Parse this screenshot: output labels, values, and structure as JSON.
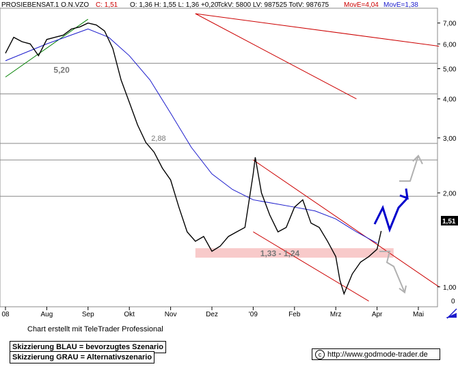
{
  "header": {
    "symbol": "PROSIEBENSAT.1 O.N.VZO",
    "close": "C: 1,51",
    "ohlc": "O: 1,36  H: 1,55  L: 1,36  +0,20",
    "volume": "TckV: 5800  LV: 987525  TotV: 987675",
    "move_e_red": "MovE=4,04",
    "move_e_blue": "MovE=1,38"
  },
  "colors": {
    "price": "#000000",
    "moving_average": "#1a1acc",
    "trend_channel": "#cc0000",
    "support_line": "#008000",
    "zone": "#f7c4c4",
    "preferred_scenario": "#0000cc",
    "alternative_scenario": "#a0a0a0"
  },
  "chart_data": {
    "type": "line",
    "y_axis_scale": "log",
    "ylim": [
      0.95,
      7.5
    ],
    "y_ticks": [
      1,
      2,
      3,
      4,
      5,
      6,
      7
    ],
    "y_tick_labels": [
      "1,00",
      "2,00",
      "3,00",
      "4,00",
      "5,00",
      "6,00",
      "7,00"
    ],
    "y_zero_label": "0",
    "x_tick_labels": [
      "08",
      "Aug",
      "Sep",
      "Okt",
      "Nov",
      "Dez",
      "'09",
      "Feb",
      "Mrz",
      "Apr",
      "Mai"
    ],
    "x_ticks_months": [
      0,
      1,
      2,
      3,
      4,
      5,
      6,
      7,
      8,
      9,
      10
    ],
    "xlim_months": [
      0,
      10.5
    ],
    "last_price_label": "1,51",
    "series": [
      {
        "role": "price",
        "x_months": [
          0,
          0.2,
          0.4,
          0.6,
          0.8,
          1.0,
          1.2,
          1.4,
          1.6,
          1.8,
          2.0,
          2.2,
          2.4,
          2.6,
          2.8,
          3.0,
          3.2,
          3.4,
          3.6,
          3.8,
          4.0,
          4.2,
          4.4,
          4.6,
          4.8,
          5.0,
          5.2,
          5.4,
          5.6,
          5.8,
          6.0,
          6.05,
          6.2,
          6.4,
          6.6,
          6.8,
          7.0,
          7.2,
          7.4,
          7.6,
          7.8,
          8.0,
          8.1,
          8.2,
          8.4,
          8.6,
          8.8,
          9.0,
          9.1
        ],
        "values": [
          5.6,
          6.3,
          6.1,
          6.0,
          5.5,
          6.2,
          6.3,
          6.4,
          6.7,
          6.8,
          7.0,
          6.9,
          6.6,
          5.8,
          4.6,
          3.9,
          3.3,
          2.9,
          2.7,
          2.4,
          2.2,
          1.8,
          1.5,
          1.4,
          1.45,
          1.3,
          1.35,
          1.45,
          1.5,
          1.55,
          2.3,
          2.6,
          2.0,
          1.7,
          1.5,
          1.55,
          1.8,
          1.9,
          1.6,
          1.55,
          1.4,
          1.25,
          1.05,
          0.95,
          1.1,
          1.2,
          1.25,
          1.32,
          1.51
        ]
      },
      {
        "role": "moving_average",
        "x_months": [
          0,
          1,
          2,
          2.5,
          3,
          3.5,
          4,
          4.5,
          5,
          5.5,
          6,
          6.5,
          7,
          7.5,
          8,
          8.5,
          9
        ],
        "values": [
          5.3,
          6.0,
          6.7,
          6.3,
          5.5,
          4.6,
          3.6,
          2.8,
          2.3,
          2.05,
          1.9,
          1.85,
          1.8,
          1.75,
          1.65,
          1.5,
          1.38
        ]
      }
    ],
    "horizontal_lines": [
      5.2,
      4.15,
      2.88,
      2.55,
      1.95
    ],
    "annotations": [
      {
        "text": "5,20",
        "value": 5.2
      },
      {
        "text": "2,88",
        "value": 2.88
      },
      {
        "text": "1,33 - 1,24",
        "range": [
          1.24,
          1.33
        ]
      }
    ],
    "trend_lines": [
      {
        "role": "support",
        "x_months": [
          0,
          2.0
        ],
        "values": [
          4.7,
          7.2
        ]
      },
      {
        "role": "red_upper",
        "x_months": [
          4.6,
          10.5
        ],
        "values": [
          7.5,
          5.9
        ]
      },
      {
        "role": "red_mid",
        "x_months": [
          4.6,
          8.5
        ],
        "values": [
          7.5,
          4.0
        ]
      },
      {
        "role": "channel_top",
        "x_months": [
          6.0,
          10.5
        ],
        "values": [
          2.55,
          1.0
        ]
      },
      {
        "role": "channel_bottom",
        "x_months": [
          6.0,
          8.8
        ],
        "values": [
          1.5,
          0.9
        ]
      }
    ]
  },
  "legend_boxes": {
    "line1": "Skizzierung BLAU = bevorzugtes Szenario",
    "line2": "Skizzierung GRAU = Alternativszenario"
  },
  "footer": {
    "credit": "Chart erstellt mit TeleTrader Professional",
    "copyright_symbol": "c",
    "url": "http://www.godmode-trader.de"
  }
}
